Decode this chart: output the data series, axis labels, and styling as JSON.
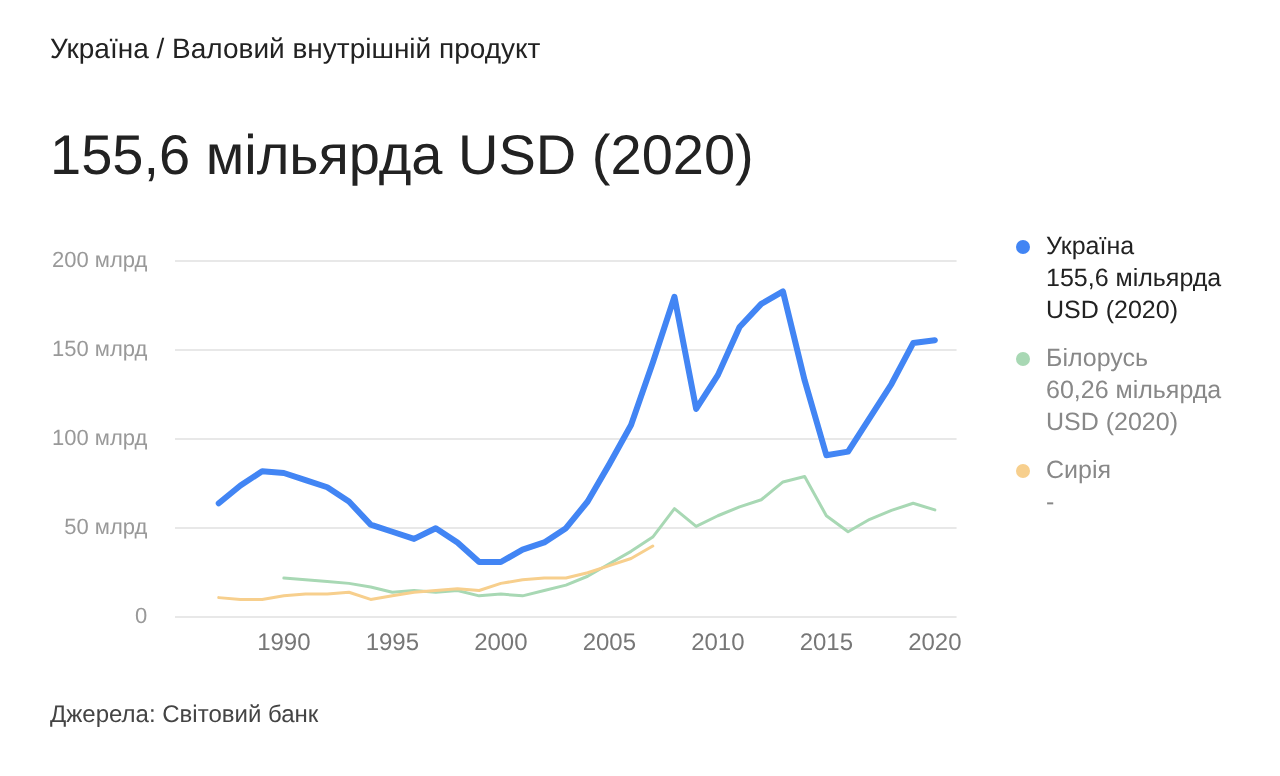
{
  "chart_data": {
    "type": "line",
    "subtitle": "Україна / Валовий внутрішній продукт",
    "title": "155,6 мільярда USD (2020)",
    "x": [
      1987,
      1988,
      1989,
      1990,
      1991,
      1992,
      1993,
      1994,
      1995,
      1996,
      1997,
      1998,
      1999,
      2000,
      2001,
      2002,
      2003,
      2004,
      2005,
      2006,
      2007,
      2008,
      2009,
      2010,
      2011,
      2012,
      2013,
      2014,
      2015,
      2016,
      2017,
      2018,
      2019,
      2020
    ],
    "series": [
      {
        "name": "Україна",
        "color": "#4285f4",
        "values": [
          64,
          74,
          82,
          81,
          77,
          73,
          65,
          52,
          48,
          44,
          50,
          42,
          31,
          31,
          38,
          42,
          50,
          65,
          86,
          108,
          143,
          180,
          117,
          136,
          163,
          176,
          183,
          133,
          91,
          93,
          112,
          131,
          154,
          155.6
        ]
      },
      {
        "name": "Білорусь",
        "color": "#a8d8b4",
        "x": [
          1990,
          1991,
          1992,
          1993,
          1994,
          1995,
          1996,
          1997,
          1998,
          1999,
          2000,
          2001,
          2002,
          2003,
          2004,
          2005,
          2006,
          2007,
          2008,
          2009,
          2010,
          2011,
          2012,
          2013,
          2014,
          2015,
          2016,
          2017,
          2018,
          2019,
          2020
        ],
        "values": [
          22,
          21,
          20,
          19,
          17,
          14,
          15,
          14,
          15,
          12,
          13,
          12,
          15,
          18,
          23,
          30,
          37,
          45,
          61,
          51,
          57,
          62,
          66,
          76,
          79,
          57,
          48,
          55,
          60,
          64,
          60.26
        ]
      },
      {
        "name": "Сирія",
        "color": "#f7cf8d",
        "x": [
          1987,
          1988,
          1989,
          1990,
          1991,
          1992,
          1993,
          1994,
          1995,
          1996,
          1997,
          1998,
          1999,
          2000,
          2001,
          2002,
          2003,
          2004,
          2005,
          2006,
          2007
        ],
        "values": [
          11,
          10,
          10,
          12,
          13,
          13,
          14,
          10,
          12,
          14,
          15,
          16,
          15,
          19,
          21,
          22,
          22,
          25,
          29,
          33,
          40
        ]
      }
    ],
    "xlim": [
      1985,
      2021
    ],
    "xticks": [
      1990,
      1995,
      2000,
      2005,
      2010,
      2015,
      2020
    ],
    "ylim": [
      0,
      200
    ],
    "yticks": [
      0,
      {
        "value": 50,
        "label": "50 млрд"
      },
      {
        "value": 100,
        "label": "100 млрд"
      },
      {
        "value": 150,
        "label": "150 млрд"
      },
      {
        "value": 200,
        "label": "200 млрд"
      }
    ],
    "grid": "y",
    "legend": "right",
    "marker": "none",
    "line_style": "solid",
    "annotations": [
      "Джерела: Світовий банк",
      "155,6 мільярда USD (2020)",
      "60,26 мільярда USD (2020)",
      "-"
    ]
  }
}
